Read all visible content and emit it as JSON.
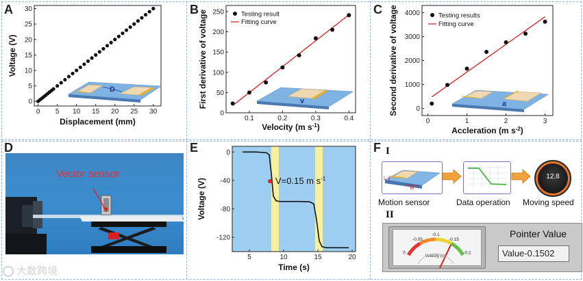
{
  "panels": {
    "a": "A",
    "b": "B",
    "c": "C",
    "d": "D",
    "e": "E",
    "f": "F"
  },
  "chart_data": [
    {
      "id": "A",
      "type": "scatter",
      "title": "",
      "xlabel": "Displacement (mm)",
      "ylabel": "Voltage (V)",
      "xlim": [
        -1,
        32
      ],
      "ylim": [
        -1.5,
        31
      ],
      "xticks": [
        0,
        5,
        10,
        15,
        20,
        25,
        30
      ],
      "yticks": [
        0,
        5,
        10,
        15,
        20,
        25,
        30
      ],
      "x": [
        0,
        0.5,
        1,
        1.5,
        2,
        2.5,
        3,
        3.5,
        4,
        5,
        6,
        7,
        8,
        9,
        10,
        11,
        12,
        13,
        14,
        15,
        16,
        17,
        18,
        19,
        20,
        21,
        22,
        23,
        24,
        25,
        26,
        27,
        28,
        29,
        30
      ],
      "y": [
        0,
        0.5,
        1,
        1.5,
        2,
        2.5,
        3,
        3.5,
        4,
        5,
        6,
        7,
        8,
        9,
        10,
        11,
        12,
        13,
        14,
        15,
        16,
        17,
        18,
        19,
        20,
        21,
        22,
        23,
        24,
        25,
        26,
        27,
        28,
        29,
        30
      ],
      "inset_label": "D"
    },
    {
      "id": "B",
      "type": "scatter",
      "xlabel": "Velocity (m s",
      "xlabel_sup": "-1",
      "xlabel_end": ")",
      "ylabel": "First derivative of voltage",
      "xlim": [
        0.03,
        0.42
      ],
      "ylim": [
        0,
        265
      ],
      "xticks": [
        0.1,
        0.2,
        0.3,
        0.4
      ],
      "yticks": [
        0,
        50,
        100,
        150,
        200,
        250
      ],
      "x": [
        0.05,
        0.1,
        0.15,
        0.2,
        0.25,
        0.3,
        0.35,
        0.4
      ],
      "y": [
        23,
        50,
        75,
        112,
        142,
        184,
        205,
        241
      ],
      "fit": {
        "x": [
          0.05,
          0.4
        ],
        "y": [
          18,
          242
        ]
      },
      "legend": [
        "Testing result",
        "Fitting curve"
      ],
      "inset_label": "v"
    },
    {
      "id": "C",
      "type": "scatter",
      "xlabel": "Accleration (m s",
      "xlabel_sup": "-2",
      "xlabel_end": ")",
      "ylabel": "Second derivative of voltage",
      "xlim": [
        -0.15,
        3.2
      ],
      "ylim": [
        -300,
        4300
      ],
      "xticks": [
        0,
        1,
        2,
        3
      ],
      "yticks": [
        0,
        1000,
        2000,
        3000,
        4000
      ],
      "x": [
        0.1,
        0.5,
        1.0,
        1.5,
        2.0,
        2.5,
        3.0
      ],
      "y": [
        200,
        980,
        1660,
        2360,
        2760,
        3120,
        3620
      ],
      "fit": {
        "x": [
          0.1,
          3.0
        ],
        "y": [
          480,
          3830
        ]
      },
      "legend": [
        "Testing results",
        "Fitting curve"
      ],
      "inset_label": "a"
    },
    {
      "id": "E",
      "type": "line",
      "xlabel": "Time (s)",
      "ylabel": "Voltage (V)",
      "xlim": [
        2.5,
        20.5
      ],
      "ylim": [
        -140,
        8
      ],
      "xticks": [
        5,
        10,
        15,
        20
      ],
      "yticks": [
        0,
        -40,
        -80,
        -120
      ],
      "x": [
        4,
        6,
        7.5,
        7.9,
        8.2,
        8.5,
        8.9,
        9.4,
        11,
        12.5,
        13.8,
        14.4,
        14.8,
        15.2,
        15.6,
        16.2,
        18,
        19.5
      ],
      "y": [
        0,
        0,
        -1,
        -4,
        -30,
        -62,
        -68.5,
        -69.5,
        -69.5,
        -69.5,
        -70,
        -73,
        -95,
        -125,
        -133,
        -134.5,
        -134.5,
        -134.5
      ],
      "highlights": [
        [
          8.2,
          9.3
        ],
        [
          14.6,
          15.7
        ]
      ],
      "annotation": "V=0.15 m s",
      "annotation_sup": "-1",
      "marker": {
        "x": 8.0,
        "y": -41
      }
    }
  ],
  "photo_d": {
    "label": "Vector sensor"
  },
  "panel_f": {
    "roman1": "I",
    "roman2": "II",
    "steps": [
      "Motion sensor",
      "Data operation",
      "Moving speed"
    ],
    "step1_letters": {
      "l": "L",
      "w": "W"
    },
    "speed_display": "12.8",
    "gauge": {
      "ticks": [
        "0",
        "-0.05",
        "-0.1",
        "-0.15",
        "-0.2"
      ],
      "label": "Velocity (m/",
      "value": -0.1502
    },
    "pointer_title": "Pointer Value",
    "pointer_value": "Value-0.1502"
  },
  "watermark": "大数跨境"
}
